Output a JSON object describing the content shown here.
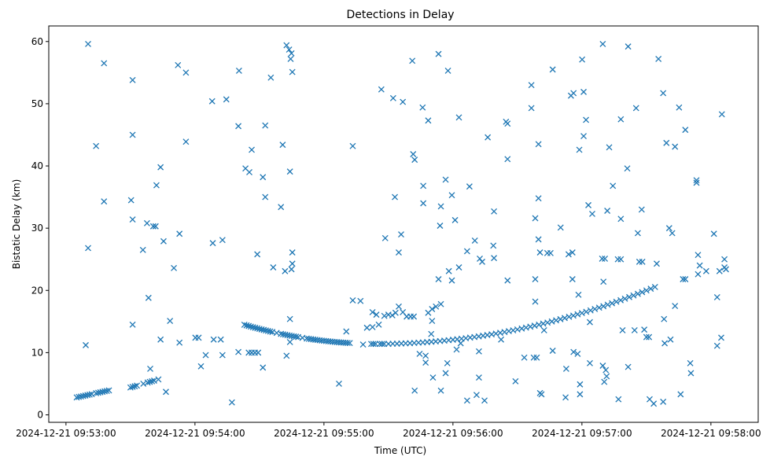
{
  "chart_data": {
    "type": "scatter",
    "title": "Detections in Delay",
    "xlabel": "Time (UTC)",
    "ylabel": "Bistatic Delay (km)",
    "x_units": "seconds after 2024-12-21 09:53:00",
    "xlim": [
      -8,
      322
    ],
    "ylim": [
      -1.2,
      62.5
    ],
    "grid": false,
    "marker": "x",
    "color": "#1f77b4",
    "x_ticks": [
      {
        "value": 0,
        "label": "2024-12-21 09:53:00"
      },
      {
        "value": 60,
        "label": "2024-12-21 09:54:00"
      },
      {
        "value": 120,
        "label": "2024-12-21 09:55:00"
      },
      {
        "value": 180,
        "label": "2024-12-21 09:56:00"
      },
      {
        "value": 240,
        "label": "2024-12-21 09:57:00"
      },
      {
        "value": 300,
        "label": "2024-12-21 09:58:00"
      }
    ],
    "y_ticks": [
      {
        "value": 0,
        "label": "0"
      },
      {
        "value": 10,
        "label": "10"
      },
      {
        "value": 20,
        "label": "20"
      },
      {
        "value": 30,
        "label": "30"
      },
      {
        "value": 40,
        "label": "40"
      },
      {
        "value": 50,
        "label": "50"
      },
      {
        "value": 60,
        "label": "60"
      }
    ],
    "points": [
      [
        5,
        2.8
      ],
      [
        6,
        2.88
      ],
      [
        7,
        2.95
      ],
      [
        8,
        3.03
      ],
      [
        9,
        3.1
      ],
      [
        10,
        3.18
      ],
      [
        11,
        3.25
      ],
      [
        12,
        3.33
      ],
      [
        14,
        3.48
      ],
      [
        15,
        3.55
      ],
      [
        16,
        3.63
      ],
      [
        17,
        3.7
      ],
      [
        18,
        3.78
      ],
      [
        19,
        3.85
      ],
      [
        20,
        3.93
      ],
      [
        30,
        4.4
      ],
      [
        31,
        4.5
      ],
      [
        32,
        4.6
      ],
      [
        33,
        4.7
      ],
      [
        36,
        5.0
      ],
      [
        38,
        5.2
      ],
      [
        39,
        5.3
      ],
      [
        40,
        5.4
      ],
      [
        41,
        5.5
      ],
      [
        43,
        5.7
      ],
      [
        83,
        14.48
      ],
      [
        84,
        14.38
      ],
      [
        85,
        14.28
      ],
      [
        86,
        14.18
      ],
      [
        87,
        14.09
      ],
      [
        88,
        14.0
      ],
      [
        89,
        13.91
      ],
      [
        90,
        13.82
      ],
      [
        91,
        13.73
      ],
      [
        92,
        13.65
      ],
      [
        93,
        13.56
      ],
      [
        94,
        13.48
      ],
      [
        95,
        13.4
      ],
      [
        96,
        13.32
      ],
      [
        98,
        13.17
      ],
      [
        100,
        13.02
      ],
      [
        101,
        12.95
      ],
      [
        102,
        12.88
      ],
      [
        103,
        12.81
      ],
      [
        104,
        12.74
      ],
      [
        105,
        12.68
      ],
      [
        106,
        12.62
      ],
      [
        107,
        12.56
      ],
      [
        108,
        12.5
      ],
      [
        110,
        12.38
      ],
      [
        112,
        12.27
      ],
      [
        113,
        12.22
      ],
      [
        114,
        12.17
      ],
      [
        115,
        12.12
      ],
      [
        116,
        12.07
      ],
      [
        117,
        12.03
      ],
      [
        118,
        11.98
      ],
      [
        119,
        11.94
      ],
      [
        120,
        11.9
      ],
      [
        121,
        11.86
      ],
      [
        122,
        11.82
      ],
      [
        123,
        11.79
      ],
      [
        124,
        11.75
      ],
      [
        125,
        11.72
      ],
      [
        126,
        11.69
      ],
      [
        127,
        11.66
      ],
      [
        128,
        11.63
      ],
      [
        129,
        11.6
      ],
      [
        130,
        11.58
      ],
      [
        131,
        11.56
      ],
      [
        132,
        11.54
      ],
      [
        142,
        11.4
      ],
      [
        143,
        11.4
      ],
      [
        144,
        11.4
      ],
      [
        146,
        11.4
      ],
      [
        147,
        11.4
      ],
      [
        148,
        11.4
      ],
      [
        150,
        11.41
      ],
      [
        152,
        11.43
      ],
      [
        154,
        11.44
      ],
      [
        156,
        11.47
      ],
      [
        158,
        11.49
      ],
      [
        160,
        11.52
      ],
      [
        162,
        11.56
      ],
      [
        164,
        11.6
      ],
      [
        166,
        11.64
      ],
      [
        168,
        11.69
      ],
      [
        170,
        11.74
      ],
      [
        172,
        11.8
      ],
      [
        174,
        11.86
      ],
      [
        176,
        11.93
      ],
      [
        178,
        12.0
      ],
      [
        180,
        12.07
      ],
      [
        182,
        12.15
      ],
      [
        184,
        12.24
      ],
      [
        186,
        12.32
      ],
      [
        188,
        12.42
      ],
      [
        190,
        12.51
      ],
      [
        192,
        12.61
      ],
      [
        194,
        12.72
      ],
      [
        196,
        12.83
      ],
      [
        198,
        12.94
      ],
      [
        200,
        13.06
      ],
      [
        202,
        13.19
      ],
      [
        204,
        13.31
      ],
      [
        206,
        13.45
      ],
      [
        208,
        13.58
      ],
      [
        210,
        13.72
      ],
      [
        212,
        13.87
      ],
      [
        214,
        14.02
      ],
      [
        216,
        14.17
      ],
      [
        218,
        14.33
      ],
      [
        220,
        14.49
      ],
      [
        222,
        14.66
      ],
      [
        224,
        14.83
      ],
      [
        226,
        15.01
      ],
      [
        228,
        15.19
      ],
      [
        230,
        15.37
      ],
      [
        232,
        15.56
      ],
      [
        234,
        15.76
      ],
      [
        236,
        15.95
      ],
      [
        238,
        16.16
      ],
      [
        240,
        16.36
      ],
      [
        242,
        16.57
      ],
      [
        244,
        16.79
      ],
      [
        246,
        17.01
      ],
      [
        248,
        17.23
      ],
      [
        250,
        17.46
      ],
      [
        252,
        17.7
      ],
      [
        254,
        17.93
      ],
      [
        256,
        18.18
      ],
      [
        258,
        18.42
      ],
      [
        260,
        18.67
      ],
      [
        262,
        18.93
      ],
      [
        264,
        19.19
      ],
      [
        266,
        19.45
      ],
      [
        268,
        19.72
      ],
      [
        270,
        19.99
      ],
      [
        272,
        20.27
      ],
      [
        274,
        20.55
      ],
      [
        85,
        10.0
      ],
      [
        86.4,
        10.0
      ],
      [
        87.9,
        10.0
      ],
      [
        89.4,
        10.0
      ],
      [
        140,
        14.0
      ],
      [
        142.6,
        14.1
      ],
      [
        145.5,
        14.5
      ],
      [
        148.1,
        15.9
      ],
      [
        150,
        16.1
      ],
      [
        151.8,
        16.0
      ],
      [
        153.3,
        16.4
      ],
      [
        154.8,
        17.4
      ],
      [
        156.7,
        16.5
      ],
      [
        158.5,
        15.8
      ],
      [
        160.3,
        15.8
      ],
      [
        161.8,
        15.8
      ],
      [
        142.6,
        16.5
      ],
      [
        144.4,
        16.1
      ],
      [
        168.5,
        16.4
      ],
      [
        170.3,
        17.0
      ],
      [
        172.1,
        17.4
      ],
      [
        174.4,
        17.8
      ],
      [
        10.3,
        59.6
      ],
      [
        17.7,
        56.5
      ],
      [
        14,
        43.2
      ],
      [
        17.7,
        34.3
      ],
      [
        10.3,
        26.8
      ],
      [
        9.2,
        11.2
      ],
      [
        31,
        53.8
      ],
      [
        31,
        45
      ],
      [
        30.3,
        34.5
      ],
      [
        31,
        31.4
      ],
      [
        31,
        14.5
      ],
      [
        35.8,
        26.5
      ],
      [
        37.7,
        30.8
      ],
      [
        40.6,
        30.3
      ],
      [
        41.7,
        30.3
      ],
      [
        42.1,
        36.9
      ],
      [
        44,
        39.8
      ],
      [
        45.4,
        27.9
      ],
      [
        44,
        12.1
      ],
      [
        38.4,
        18.8
      ],
      [
        39.2,
        7.4
      ],
      [
        46.5,
        3.7
      ],
      [
        48.4,
        15.1
      ],
      [
        50.2,
        23.6
      ],
      [
        52.1,
        56.2
      ],
      [
        55.8,
        55
      ],
      [
        55.8,
        43.9
      ],
      [
        52.8,
        29.1
      ],
      [
        52.8,
        11.6
      ],
      [
        60.2,
        12.4
      ],
      [
        61.7,
        12.4
      ],
      [
        62.8,
        7.8
      ],
      [
        65,
        9.6
      ],
      [
        68,
        50.4
      ],
      [
        74.6,
        50.7
      ],
      [
        68.3,
        27.6
      ],
      [
        72.8,
        28.1
      ],
      [
        68.7,
        12.1
      ],
      [
        72,
        12.1
      ],
      [
        72.8,
        9.6
      ],
      [
        77.2,
        2
      ],
      [
        80.5,
        55.3
      ],
      [
        80.2,
        46.4
      ],
      [
        80.2,
        10.1
      ],
      [
        83.5,
        39.6
      ],
      [
        85.3,
        39
      ],
      [
        86.4,
        42.6
      ],
      [
        89,
        25.8
      ],
      [
        91.6,
        38.2
      ],
      [
        92.7,
        46.5
      ],
      [
        92.7,
        35
      ],
      [
        91.6,
        7.6
      ],
      [
        95.3,
        54.2
      ],
      [
        96.4,
        23.7
      ],
      [
        100,
        33.4
      ],
      [
        100.8,
        43.4
      ],
      [
        101.9,
        23.1
      ],
      [
        102.6,
        9.5
      ],
      [
        102.6,
        59.4
      ],
      [
        103.8,
        58.7
      ],
      [
        104.9,
        58.1
      ],
      [
        104.5,
        57.2
      ],
      [
        105.3,
        55.1
      ],
      [
        104.2,
        39.1
      ],
      [
        105.3,
        26.1
      ],
      [
        105.3,
        24.3
      ],
      [
        104.9,
        23.4
      ],
      [
        104.2,
        15.4
      ],
      [
        104.2,
        11.7
      ],
      [
        127,
        5
      ],
      [
        130.4,
        13.4
      ],
      [
        133.4,
        43.2
      ],
      [
        133.4,
        18.4
      ],
      [
        137,
        18.3
      ],
      [
        138.2,
        11.3
      ],
      [
        146.7,
        52.3
      ],
      [
        148.5,
        28.4
      ],
      [
        152.2,
        50.9
      ],
      [
        153,
        35
      ],
      [
        154.8,
        26.1
      ],
      [
        155.9,
        29
      ],
      [
        156.7,
        50.3
      ],
      [
        161.1,
        56.9
      ],
      [
        161.5,
        41.9
      ],
      [
        162.2,
        41
      ],
      [
        162.2,
        3.9
      ],
      [
        165.9,
        49.4
      ],
      [
        166.2,
        36.8
      ],
      [
        166.2,
        34
      ],
      [
        168.5,
        47.3
      ],
      [
        164.5,
        9.8
      ],
      [
        167.3,
        8.4
      ],
      [
        167.3,
        9.5
      ],
      [
        170.7,
        6
      ],
      [
        169.9,
        13
      ],
      [
        170.3,
        15.1
      ],
      [
        173.3,
        58
      ],
      [
        174.4,
        33.5
      ],
      [
        174,
        30.4
      ],
      [
        173.3,
        21.8
      ],
      [
        174.4,
        3.9
      ],
      [
        176.6,
        37.8
      ],
      [
        177.7,
        55.3
      ],
      [
        176.6,
        6.7
      ],
      [
        177.4,
        8.3
      ],
      [
        178.1,
        23.1
      ],
      [
        179.5,
        35.3
      ],
      [
        179.5,
        21.6
      ],
      [
        181,
        31.3
      ],
      [
        182.8,
        47.8
      ],
      [
        182.8,
        23.7
      ],
      [
        183.6,
        11.5
      ],
      [
        181.7,
        10.5
      ],
      [
        186.6,
        2.3
      ],
      [
        187.7,
        36.7
      ],
      [
        186.6,
        26.3
      ],
      [
        190.2,
        28
      ],
      [
        191,
        3.2
      ],
      [
        192.1,
        10.2
      ],
      [
        192.1,
        6
      ],
      [
        192.5,
        25.1
      ],
      [
        193.6,
        24.6
      ],
      [
        194.7,
        2.3
      ],
      [
        196.2,
        44.6
      ],
      [
        198.8,
        27.2
      ],
      [
        199.1,
        32.7
      ],
      [
        199.1,
        25.2
      ],
      [
        202.4,
        12.1
      ],
      [
        204.7,
        47.1
      ],
      [
        205.4,
        46.8
      ],
      [
        205.4,
        41.1
      ],
      [
        205.4,
        21.6
      ],
      [
        209.1,
        5.4
      ],
      [
        213.2,
        9.2
      ],
      [
        216.5,
        53
      ],
      [
        216.5,
        49.3
      ],
      [
        219.8,
        43.5
      ],
      [
        218.3,
        31.6
      ],
      [
        219.8,
        34.8
      ],
      [
        218.3,
        21.8
      ],
      [
        218.3,
        18.2
      ],
      [
        219.8,
        28.2
      ],
      [
        217.6,
        9.2
      ],
      [
        219,
        9.2
      ],
      [
        220.5,
        3.5
      ],
      [
        221.2,
        3.3
      ],
      [
        220.5,
        26.1
      ],
      [
        223.9,
        26
      ],
      [
        225.4,
        26
      ],
      [
        222.4,
        13.6
      ],
      [
        226.4,
        55.5
      ],
      [
        226.4,
        10.3
      ],
      [
        230.1,
        30.1
      ],
      [
        232.7,
        7.4
      ],
      [
        232.4,
        2.8
      ],
      [
        233.8,
        25.8
      ],
      [
        235.6,
        26.1
      ],
      [
        235.6,
        21.8
      ],
      [
        234.9,
        51.3
      ],
      [
        236.1,
        51.7
      ],
      [
        236.1,
        10.1
      ],
      [
        238,
        9.8
      ],
      [
        238.4,
        19.3
      ],
      [
        238.8,
        42.6
      ],
      [
        239.1,
        4.9
      ],
      [
        239.1,
        3.3
      ],
      [
        240.1,
        57.1
      ],
      [
        240.8,
        51.9
      ],
      [
        241.9,
        47.4
      ],
      [
        240.8,
        44.8
      ],
      [
        243,
        33.7
      ],
      [
        244.8,
        32.3
      ],
      [
        243.7,
        14.9
      ],
      [
        243.7,
        8.3
      ],
      [
        249.7,
        59.6
      ],
      [
        252.7,
        43
      ],
      [
        249.7,
        7.9
      ],
      [
        251.1,
        7.2
      ],
      [
        250.4,
        5.3
      ],
      [
        251.5,
        6.2
      ],
      [
        250,
        21.4
      ],
      [
        251.8,
        32.8
      ],
      [
        254.4,
        36.8
      ],
      [
        257,
        2.5
      ],
      [
        258.1,
        47.5
      ],
      [
        258.1,
        31.5
      ],
      [
        258.9,
        13.6
      ],
      [
        261.1,
        39.6
      ],
      [
        261.5,
        59.2
      ],
      [
        261.5,
        7.7
      ],
      [
        264.5,
        13.6
      ],
      [
        265.2,
        49.3
      ],
      [
        266,
        29.2
      ],
      [
        267.8,
        33
      ],
      [
        269,
        13.7
      ],
      [
        270,
        12.5
      ],
      [
        271.2,
        12.5
      ],
      [
        271.5,
        2.5
      ],
      [
        273.4,
        1.8
      ],
      [
        275.6,
        57.2
      ],
      [
        274.8,
        24.3
      ],
      [
        277.8,
        51.7
      ],
      [
        277.8,
        2.1
      ],
      [
        278.2,
        15.4
      ],
      [
        278.5,
        11.5
      ],
      [
        279.3,
        43.7
      ],
      [
        280.6,
        30
      ],
      [
        282,
        29.2
      ],
      [
        281.2,
        12.1
      ],
      [
        283.3,
        43.1
      ],
      [
        283.3,
        17.5
      ],
      [
        285.2,
        49.4
      ],
      [
        287,
        21.8
      ],
      [
        288.1,
        21.8
      ],
      [
        288.1,
        45.8
      ],
      [
        285.9,
        3.3
      ],
      [
        290.4,
        8.3
      ],
      [
        290.7,
        6.7
      ],
      [
        293.3,
        37.7
      ],
      [
        293.3,
        37.3
      ],
      [
        294,
        25.7
      ],
      [
        294,
        22.6
      ],
      [
        294.8,
        24
      ],
      [
        297.8,
        23.1
      ],
      [
        301.4,
        29.1
      ],
      [
        302.9,
        18.9
      ],
      [
        302.9,
        11.1
      ],
      [
        304.8,
        12.4
      ],
      [
        305.1,
        48.3
      ],
      [
        304,
        23.1
      ],
      [
        306.3,
        25
      ],
      [
        306.3,
        23.7
      ],
      [
        307,
        23.4
      ],
      [
        266.7,
        24.6
      ],
      [
        268.1,
        24.6
      ],
      [
        256.7,
        25
      ],
      [
        258.1,
        25
      ],
      [
        249.4,
        25.1
      ],
      [
        250.7,
        25.1
      ]
    ]
  }
}
